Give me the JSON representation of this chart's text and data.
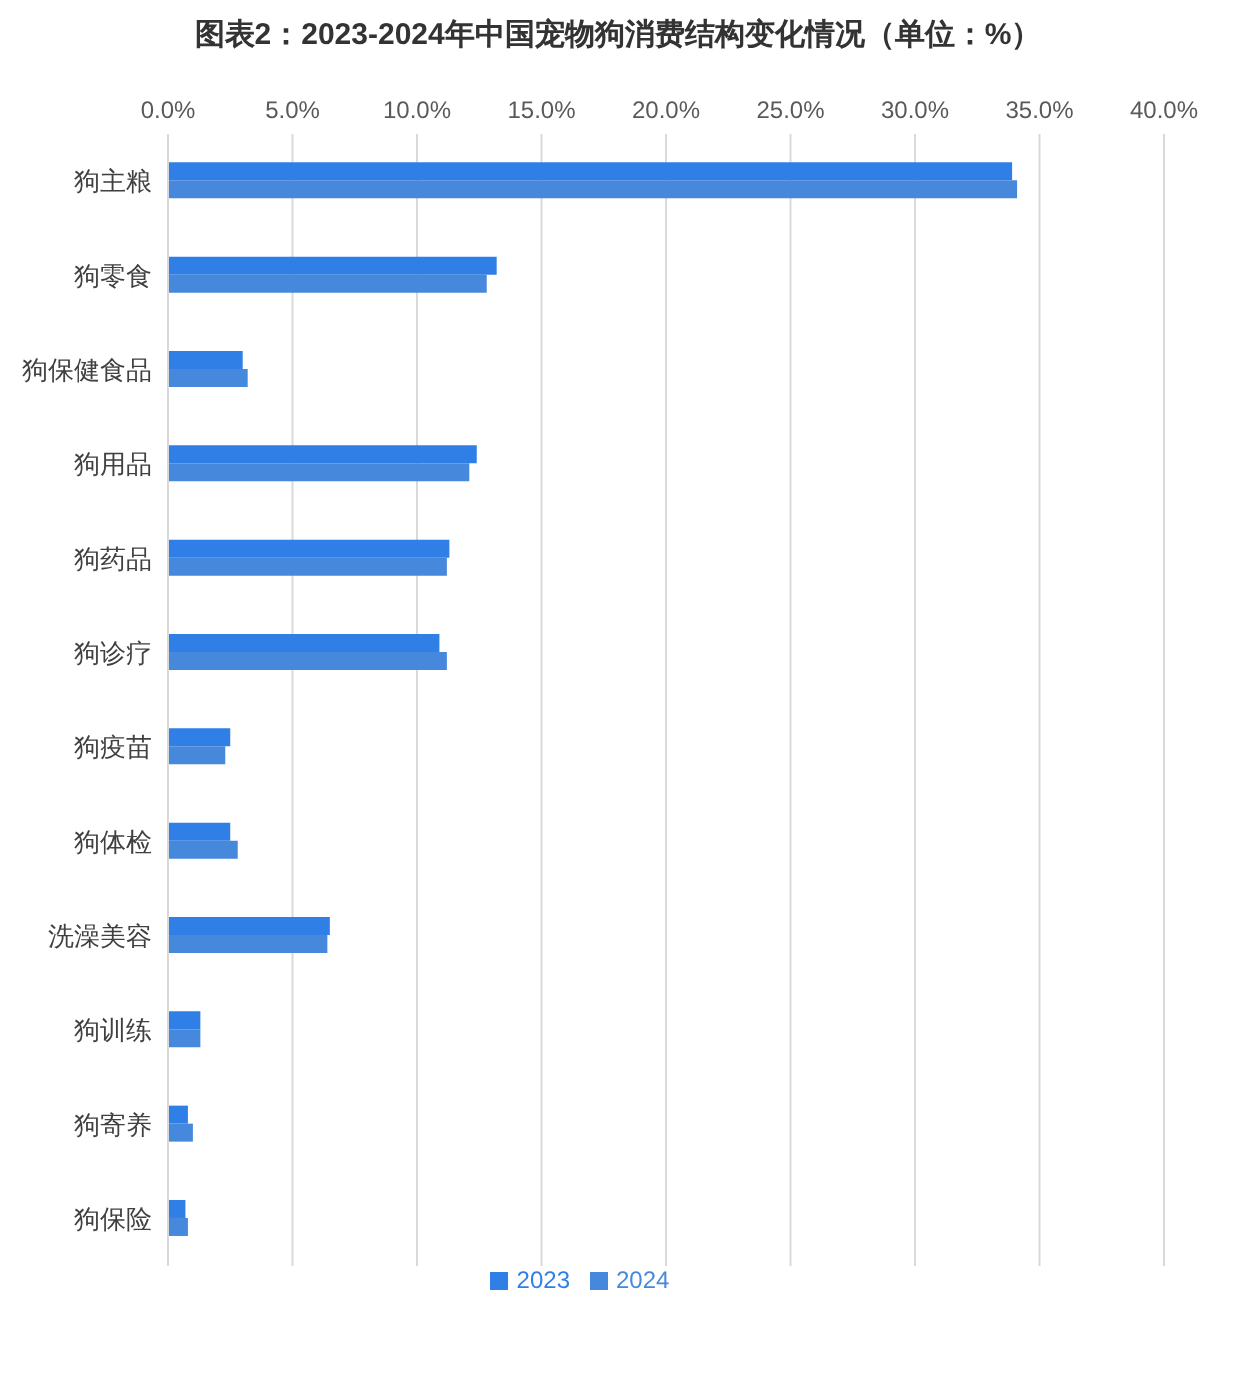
{
  "chart_data": {
    "type": "bar",
    "orientation": "horizontal",
    "title": "图表2：2023-2024年中国宠物狗消费结构变化情况（单位：%）",
    "categories": [
      "狗主粮",
      "狗零食",
      "狗保健食品",
      "狗用品",
      "狗药品",
      "狗诊疗",
      "狗疫苗",
      "狗体检",
      "洗澡美容",
      "狗训练",
      "狗寄养",
      "狗保险"
    ],
    "series": [
      {
        "name": "2023",
        "color": "#2f7fe6",
        "values": [
          33.9,
          13.2,
          3.0,
          12.4,
          11.3,
          10.9,
          2.5,
          2.5,
          6.5,
          1.3,
          0.8,
          0.7
        ]
      },
      {
        "name": "2024",
        "color": "#4688dc",
        "values": [
          34.1,
          12.8,
          3.2,
          12.1,
          11.2,
          11.2,
          2.3,
          2.8,
          6.4,
          1.3,
          1.0,
          0.8
        ]
      }
    ],
    "xlim": [
      0,
      40
    ],
    "xticks": [
      {
        "value": 0,
        "label": "0.0%"
      },
      {
        "value": 5,
        "label": "5.0%"
      },
      {
        "value": 10,
        "label": "10.0%"
      },
      {
        "value": 15,
        "label": "15.0%"
      },
      {
        "value": 20,
        "label": "20.0%"
      },
      {
        "value": 25,
        "label": "25.0%"
      },
      {
        "value": 30,
        "label": "30.0%"
      },
      {
        "value": 35,
        "label": "35.0%"
      },
      {
        "value": 40,
        "label": "40.0%"
      }
    ],
    "grid": "x",
    "legend": "bottom"
  }
}
